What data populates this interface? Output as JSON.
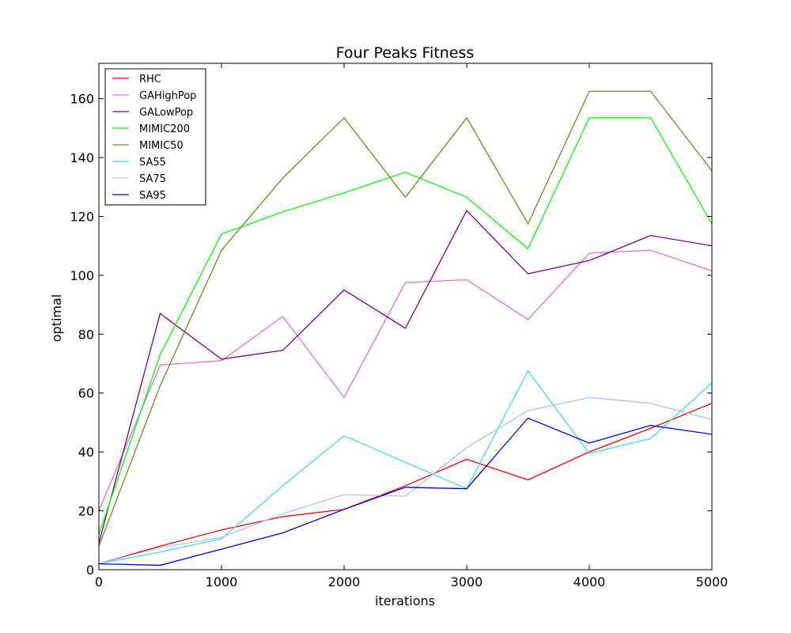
{
  "chart_data": {
    "type": "line",
    "title": "Four Peaks Fitness",
    "xlabel": "iterations",
    "ylabel": "optimal",
    "xlim": [
      0,
      5000
    ],
    "ylim": [
      0,
      172
    ],
    "xticks": [
      0,
      1000,
      2000,
      3000,
      4000,
      5000
    ],
    "yticks": [
      0,
      20,
      40,
      60,
      80,
      100,
      120,
      140,
      160
    ],
    "grid": false,
    "legend_position": "upper-left",
    "x": [
      0,
      500,
      1000,
      1500,
      2000,
      2500,
      3000,
      3500,
      4000,
      4500,
      5000
    ],
    "series": [
      {
        "name": "RHC",
        "color": "#ff0000",
        "values": [
          2,
          8,
          13.5,
          18,
          20.5,
          28.5,
          37.5,
          30.5,
          40,
          48,
          56.5
        ]
      },
      {
        "name": "GAHighPop",
        "color": "#da70d6",
        "values": [
          20,
          69.5,
          71,
          86,
          58.5,
          97.5,
          98.5,
          85,
          107.5,
          108.5,
          101.5
        ]
      },
      {
        "name": "GALowPop",
        "color": "#800080",
        "values": [
          9,
          87,
          71.5,
          74.5,
          95,
          82,
          122,
          100.5,
          105,
          113.5,
          110
        ]
      },
      {
        "name": "MIMIC200",
        "color": "#00ff00",
        "values": [
          12,
          73,
          114,
          121.5,
          128,
          135,
          126.5,
          109,
          153.5,
          153.5,
          117.5
        ]
      },
      {
        "name": "MIMIC50",
        "color": "#6b8e23",
        "values": [
          8,
          62.5,
          108.5,
          133,
          153.5,
          126.5,
          153.5,
          117.5,
          162.5,
          162.5,
          135.5
        ]
      },
      {
        "name": "SA55",
        "color": "#40e0d0",
        "values": [
          2,
          6,
          10.5,
          28.5,
          45.5,
          36.5,
          27.5,
          67.5,
          39.5,
          44.5,
          63.5
        ]
      },
      {
        "name": "SA75",
        "color": "#b0c4de",
        "values": [
          2,
          7.5,
          11,
          19,
          25.5,
          25,
          41.5,
          54,
          58.5,
          56.5,
          51
        ]
      },
      {
        "name": "SA95",
        "color": "#0000ff",
        "values": [
          2,
          1.5,
          7,
          12.5,
          20.5,
          28,
          27.5,
          51.5,
          43,
          49,
          46
        ]
      }
    ]
  }
}
